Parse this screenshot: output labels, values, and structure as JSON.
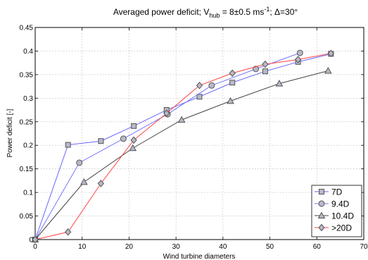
{
  "chart_data": {
    "type": "line",
    "title": {
      "prefix": "Averaged power deficit; V",
      "subscript": "hub",
      "middle": " = 8±0.5 ms",
      "superscript": "-1",
      "suffix": "; Δ=30°"
    },
    "xlabel": "Wind turbine diameters",
    "ylabel": "Power deficit [-]",
    "xlim": [
      0,
      70
    ],
    "ylim": [
      0,
      0.45
    ],
    "xticks": [
      0,
      10,
      20,
      30,
      40,
      50,
      60,
      70
    ],
    "xtick_labels": [
      "0",
      "10",
      "20",
      "30",
      "40",
      "50",
      "60",
      "70"
    ],
    "yticks": [
      0,
      0.05,
      0.1,
      0.15,
      0.2,
      0.25,
      0.3,
      0.35,
      0.4,
      0.45
    ],
    "ytick_labels": [
      "0",
      "0.05",
      "0.1",
      "0.15",
      "0.2",
      "0.25",
      "0.3",
      "0.35",
      "0.4",
      "0.45"
    ],
    "grid": true,
    "legend_position": "bottom-right",
    "series": [
      {
        "name": "7D",
        "color": "#6666ff",
        "marker": "square",
        "x": [
          0,
          7,
          14,
          21,
          28,
          35,
          42,
          49,
          56,
          63
        ],
        "y": [
          0,
          0.201,
          0.209,
          0.241,
          0.275,
          0.303,
          0.333,
          0.357,
          0.377,
          0.394
        ]
      },
      {
        "name": "9.4D",
        "color": "#7777ff",
        "marker": "circle",
        "x": [
          0,
          9.4,
          18.8,
          28.2,
          37.6,
          47,
          56.4
        ],
        "y": [
          0,
          0.163,
          0.214,
          0.266,
          0.327,
          0.362,
          0.396
        ]
      },
      {
        "name": "10.4D",
        "color": "#444444",
        "marker": "triangle",
        "x": [
          0,
          10.4,
          20.8,
          31.2,
          41.6,
          52,
          62.4
        ],
        "y": [
          0,
          0.122,
          0.194,
          0.254,
          0.294,
          0.331,
          0.358
        ]
      },
      {
        "name": ">20D",
        "color": "#ff4444",
        "marker": "diamond",
        "x": [
          0,
          7,
          14,
          21,
          28,
          35,
          42,
          49,
          56,
          63
        ],
        "y": [
          0,
          0.016,
          0.119,
          0.211,
          0.268,
          0.327,
          0.353,
          0.372,
          0.382,
          0.395
        ]
      }
    ]
  }
}
